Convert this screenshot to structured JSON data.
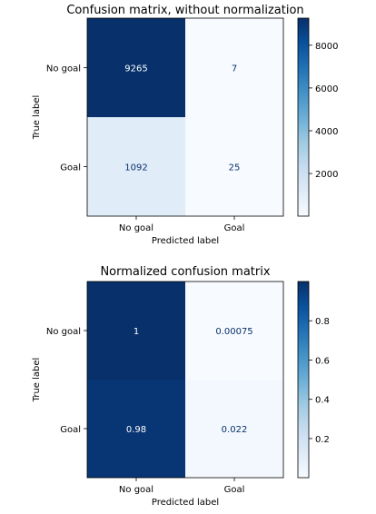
{
  "chart_data": [
    {
      "type": "heatmap",
      "title": "Confusion matrix, without normalization",
      "xlabel": "Predicted label",
      "ylabel": "True label",
      "x_categories": [
        "No goal",
        "Goal"
      ],
      "y_categories": [
        "No goal",
        "Goal"
      ],
      "values": [
        [
          9265,
          7
        ],
        [
          1092,
          25
        ]
      ],
      "value_labels": [
        [
          "9265",
          "7"
        ],
        [
          "1092",
          "25"
        ]
      ],
      "colormap": "Blues",
      "colorbar": {
        "min": 7,
        "max": 9265,
        "ticks": [
          2000,
          4000,
          6000,
          8000
        ],
        "tick_labels": [
          "2000",
          "4000",
          "6000",
          "8000"
        ]
      }
    },
    {
      "type": "heatmap",
      "title": "Normalized confusion matrix",
      "xlabel": "Predicted label",
      "ylabel": "True label",
      "x_categories": [
        "No goal",
        "Goal"
      ],
      "y_categories": [
        "No goal",
        "Goal"
      ],
      "values": [
        [
          1,
          0.00075
        ],
        [
          0.98,
          0.022
        ]
      ],
      "value_labels": [
        [
          "1",
          "0.00075"
        ],
        [
          "0.98",
          "0.022"
        ]
      ],
      "colormap": "Blues",
      "colorbar": {
        "min": 0.00075,
        "max": 1,
        "ticks": [
          0.2,
          0.4,
          0.6,
          0.8
        ],
        "tick_labels": [
          "0.2",
          "0.4",
          "0.6",
          "0.8"
        ]
      }
    }
  ],
  "colors": {
    "blues": [
      "#f7fbff",
      "#deebf7",
      "#c6dbef",
      "#9ecae1",
      "#6baed6",
      "#4292c6",
      "#2171b5",
      "#08519c",
      "#08306b"
    ]
  }
}
